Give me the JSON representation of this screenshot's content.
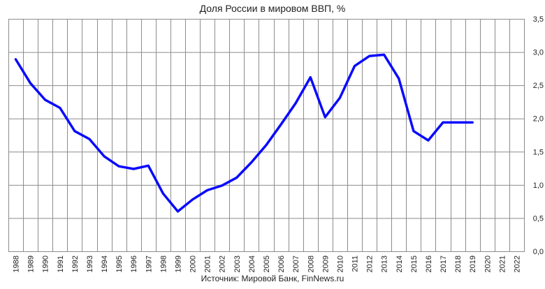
{
  "chart_data": {
    "type": "line",
    "title": "Доля России в мировом ВВП, %",
    "source": "Источник: Мировой Банк, FinNews.ru",
    "xlabel": "",
    "ylabel": "",
    "ylim": [
      0,
      3.5
    ],
    "y_ticks": [
      "0,0",
      "0,5",
      "1,0",
      "1,5",
      "2,0",
      "2,5",
      "3,0",
      "3,5"
    ],
    "y_tick_values": [
      0,
      0.5,
      1.0,
      1.5,
      2.0,
      2.5,
      3.0,
      3.5
    ],
    "categories": [
      "1988",
      "1989",
      "1990",
      "1991",
      "1992",
      "1993",
      "1994",
      "1995",
      "1996",
      "1997",
      "1998",
      "1999",
      "2000",
      "2001",
      "2002",
      "2003",
      "2004",
      "2005",
      "2006",
      "2007",
      "2008",
      "2009",
      "2010",
      "2011",
      "2012",
      "2013",
      "2014",
      "2015",
      "2016",
      "2017",
      "2018",
      "2019",
      "2020",
      "2021",
      "2022"
    ],
    "series": [
      {
        "color": "#0a0aff",
        "values": [
          2.89,
          2.53,
          2.28,
          2.16,
          1.81,
          1.69,
          1.43,
          1.28,
          1.24,
          1.29,
          0.87,
          0.6,
          0.78,
          0.92,
          0.99,
          1.11,
          1.34,
          1.6,
          1.91,
          2.23,
          2.62,
          2.02,
          2.31,
          2.79,
          2.94,
          2.96,
          2.6,
          1.81,
          1.67,
          1.94,
          1.94,
          1.94,
          null,
          null,
          null
        ]
      }
    ],
    "grid": true,
    "y_axis_side": "right"
  }
}
